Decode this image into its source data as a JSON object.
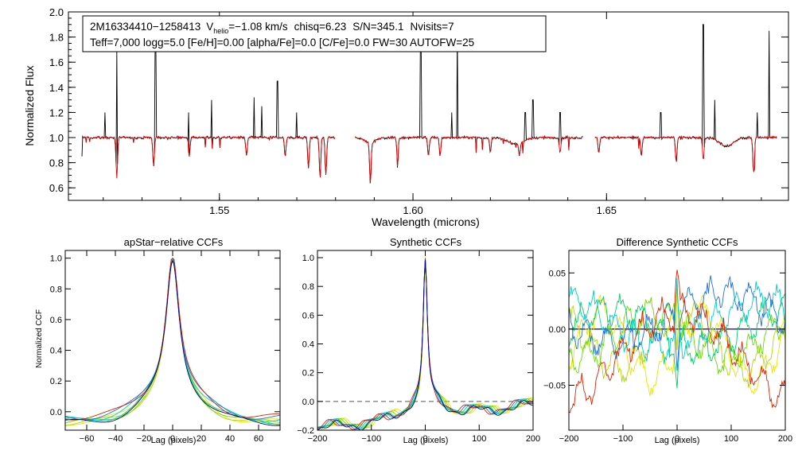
{
  "colors": {
    "observed": "#000000",
    "model": "#dd0000",
    "zero_line": "#00008b",
    "dashed": "#555555",
    "visits": [
      "#e6e600",
      "#b0d800",
      "#66dd00",
      "#00cc66",
      "#00cccc",
      "#1f6fd6",
      "#dd2200"
    ]
  },
  "spectrum": {
    "type": "line",
    "ylabel": "Normalized Flux",
    "xlabel": "Wavelength (microns)",
    "xlim": [
      1.511,
      1.697
    ],
    "ylim": [
      0.5,
      2.0
    ],
    "xticks": [
      "1.55",
      "1.60",
      "1.65"
    ],
    "xtick_values": [
      1.55,
      1.6,
      1.65
    ],
    "yticks": [
      "0.6",
      "0.8",
      "1.0",
      "1.2",
      "1.4",
      "1.6",
      "1.8",
      "2.0"
    ],
    "ytick_values": [
      0.6,
      0.8,
      1.0,
      1.2,
      1.4,
      1.6,
      1.8,
      2.0
    ],
    "chips": [
      [
        1.5145,
        1.58
      ],
      [
        1.585,
        1.644
      ],
      [
        1.647,
        1.694
      ]
    ],
    "label": {
      "line1_star": "2M16334410−1258413",
      "line1_v": "V",
      "line1_vsub": "helio",
      "line1_vval": "=−1.08 km/s",
      "line1_chisq": "chisq=6.23",
      "line1_sn": "S/N=345.1",
      "line1_nvisits": "Nvisits=7",
      "line2": "Teff=7,000 logg=5.0 [Fe/H]=0.00 [alpha/Fe]=0.0 [C/Fe]=0.0 FW=30 AUTOFW=25"
    },
    "emission_spikes": [
      {
        "wl": 1.5205,
        "flux": 1.2
      },
      {
        "wl": 1.5235,
        "flux": 1.7
      },
      {
        "wl": 1.5335,
        "flux": 1.8
      },
      {
        "wl": 1.542,
        "flux": 1.2
      },
      {
        "wl": 1.548,
        "flux": 1.3
      },
      {
        "wl": 1.559,
        "flux": 1.32
      },
      {
        "wl": 1.561,
        "flux": 1.25
      },
      {
        "wl": 1.565,
        "flux": 1.45
      },
      {
        "wl": 1.57,
        "flux": 1.2
      },
      {
        "wl": 1.602,
        "flux": 1.8
      },
      {
        "wl": 1.61,
        "flux": 1.2
      },
      {
        "wl": 1.6115,
        "flux": 1.85
      },
      {
        "wl": 1.629,
        "flux": 1.2
      },
      {
        "wl": 1.631,
        "flux": 1.3
      },
      {
        "wl": 1.638,
        "flux": 1.2
      },
      {
        "wl": 1.664,
        "flux": 1.2
      },
      {
        "wl": 1.675,
        "flux": 1.9
      },
      {
        "wl": 1.678,
        "flux": 1.3
      },
      {
        "wl": 1.689,
        "flux": 1.2
      },
      {
        "wl": 1.692,
        "flux": 1.85
      }
    ],
    "absorption_lines": [
      {
        "wl": 1.5235,
        "depth": 0.68
      },
      {
        "wl": 1.533,
        "depth": 0.77
      },
      {
        "wl": 1.5422,
        "depth": 0.85
      },
      {
        "wl": 1.557,
        "depth": 0.85
      },
      {
        "wl": 1.567,
        "depth": 0.85
      },
      {
        "wl": 1.573,
        "depth": 0.75
      },
      {
        "wl": 1.576,
        "depth": 0.68
      },
      {
        "wl": 1.5775,
        "depth": 0.7
      },
      {
        "wl": 1.589,
        "depth": 0.68
      },
      {
        "wl": 1.596,
        "depth": 0.85
      },
      {
        "wl": 1.604,
        "depth": 0.85
      },
      {
        "wl": 1.607,
        "depth": 0.85
      },
      {
        "wl": 1.62,
        "depth": 0.88
      },
      {
        "wl": 1.6275,
        "depth": 0.9
      },
      {
        "wl": 1.638,
        "depth": 0.88
      },
      {
        "wl": 1.648,
        "depth": 0.88
      },
      {
        "wl": 1.659,
        "depth": 0.85
      },
      {
        "wl": 1.668,
        "depth": 0.8
      },
      {
        "wl": 1.675,
        "depth": 0.82
      },
      {
        "wl": 1.688,
        "depth": 0.72
      }
    ]
  },
  "ccf_panels": [
    {
      "type": "line",
      "title": "apStar−relative CCFs",
      "xlabel": "Lag (pixels)",
      "ylabel": "Normalized CCF",
      "xlim": [
        -75,
        75
      ],
      "ylim": [
        -0.12,
        1.05
      ],
      "xticks": [
        "−60",
        "−40",
        "−20",
        "0",
        "20",
        "40",
        "60"
      ],
      "xtick_values": [
        -60,
        -40,
        -20,
        0,
        20,
        40,
        60
      ],
      "yticks": [
        "0.0",
        "0.2",
        "0.4",
        "0.6",
        "0.8",
        "1.0"
      ],
      "ytick_values": [
        0.0,
        0.2,
        0.4,
        0.6,
        0.8,
        1.0
      ],
      "model": "narrow",
      "series_count": 7,
      "dashed_zero": false
    },
    {
      "type": "line",
      "title": "Synthetic CCFs",
      "xlabel": "Lag (pixels)",
      "ylabel": "",
      "xlim": [
        -200,
        200
      ],
      "ylim": [
        -0.2,
        1.05
      ],
      "xticks": [
        "−200",
        "−100",
        "0",
        "100",
        "200"
      ],
      "xtick_values": [
        -200,
        -100,
        0,
        100,
        200
      ],
      "yticks": [
        "−0.2",
        "0.0",
        "0.2",
        "0.4",
        "0.6",
        "0.8",
        "1.0"
      ],
      "ytick_values": [
        -0.2,
        0.0,
        0.2,
        0.4,
        0.6,
        0.8,
        1.0
      ],
      "model": "wide",
      "series_count": 7,
      "dashed_zero": true
    },
    {
      "type": "line",
      "title": "Difference Synthetic CCFs",
      "xlabel": "Lag (pixels)",
      "ylabel": "",
      "xlim": [
        -200,
        200
      ],
      "ylim": [
        -0.09,
        0.07
      ],
      "xticks": [
        "−200",
        "−100",
        "0",
        "100",
        "200"
      ],
      "xtick_values": [
        -200,
        -100,
        0,
        100,
        200
      ],
      "yticks": [
        "−0.05",
        "0.00",
        "0.05"
      ],
      "ytick_values": [
        -0.05,
        0.0,
        0.05
      ],
      "model": "diff",
      "series_count": 7,
      "dashed_zero": false
    }
  ]
}
